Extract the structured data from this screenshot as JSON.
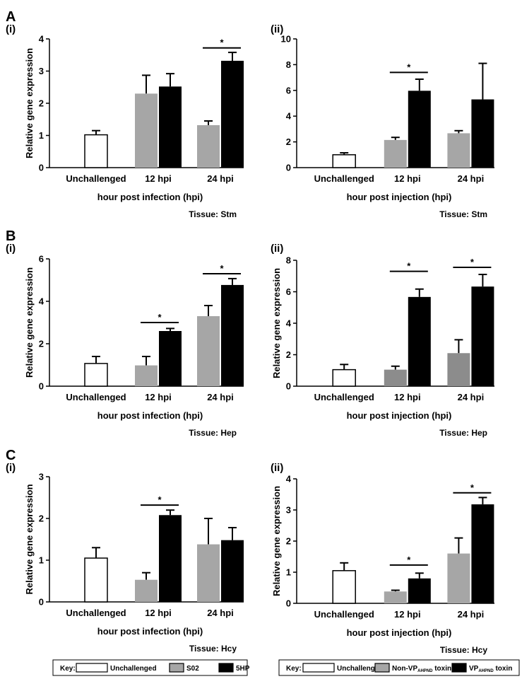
{
  "colors": {
    "white": "#ffffff",
    "gray": "#a6a6a6",
    "dark_gray": "#8c8c8c",
    "black": "#000000"
  },
  "keys": [
    {
      "label": "Key:",
      "items": [
        {
          "text": "Unchallenged",
          "color": "#ffffff"
        },
        {
          "text": "S02",
          "color": "#a6a6a6"
        },
        {
          "text": "5HP",
          "color": "#000000"
        }
      ]
    },
    {
      "label": "Key:",
      "items": [
        {
          "text": "Unchallenged",
          "color": "#ffffff"
        },
        {
          "text": "Non-VP",
          "sub": "AHPND",
          "suffix": " toxin",
          "color": "#a6a6a6"
        },
        {
          "text": "VP",
          "sub": "AHPND",
          "suffix": " toxin",
          "color": "#000000"
        }
      ]
    }
  ],
  "chart_data": [
    {
      "id": "A-i",
      "section_letter": "A",
      "panel_label": "(i)",
      "type": "bar",
      "ylabel": "Relative gene expression",
      "xlabel": "hour post infection (hpi)",
      "tissue": "Tissue: Stm",
      "ylim": [
        0,
        4
      ],
      "yticks": [
        0,
        1,
        2,
        3,
        4
      ],
      "categories": [
        "Unchallenged",
        "12 hpi",
        "24 hpi"
      ],
      "bars": [
        {
          "category": "Unchallenged",
          "value": 1.02,
          "error": 0.13,
          "color": "#ffffff"
        },
        {
          "category": "12 hpi",
          "value": 2.3,
          "error": 0.57,
          "color": "#a6a6a6"
        },
        {
          "category": "12 hpi",
          "value": 2.52,
          "error": 0.4,
          "color": "#000000"
        },
        {
          "category": "24 hpi",
          "value": 1.32,
          "error": 0.13,
          "color": "#a6a6a6"
        },
        {
          "category": "24 hpi",
          "value": 3.32,
          "error": 0.26,
          "color": "#000000"
        }
      ],
      "significance": [
        {
          "category": "24 hpi",
          "y": 3.72,
          "label": "*"
        }
      ]
    },
    {
      "id": "A-ii",
      "section_letter": "",
      "panel_label": "(ii)",
      "type": "bar",
      "ylabel": "",
      "xlabel": "hour post injection (hpi)",
      "tissue": "Tissue: Stm",
      "ylim": [
        0,
        10
      ],
      "yticks": [
        0,
        2,
        4,
        6,
        8,
        10
      ],
      "categories": [
        "Unchallenged",
        "12 hpi",
        "24 hpi"
      ],
      "bars": [
        {
          "category": "Unchallenged",
          "value": 1.0,
          "error": 0.15,
          "color": "#ffffff"
        },
        {
          "category": "12 hpi",
          "value": 2.15,
          "error": 0.2,
          "color": "#a6a6a6"
        },
        {
          "category": "12 hpi",
          "value": 5.97,
          "error": 0.9,
          "color": "#000000"
        },
        {
          "category": "24 hpi",
          "value": 2.67,
          "error": 0.2,
          "color": "#a6a6a6"
        },
        {
          "category": "24 hpi",
          "value": 5.3,
          "error": 2.8,
          "color": "#000000"
        }
      ],
      "significance": [
        {
          "category": "12 hpi",
          "y": 7.4,
          "label": "*"
        }
      ]
    },
    {
      "id": "B-i",
      "section_letter": "B",
      "panel_label": "(i)",
      "type": "bar",
      "ylabel": "Relative gene expression",
      "xlabel": "hour post infection (hpi)",
      "tissue": "Tissue: Hep",
      "ylim": [
        0,
        6
      ],
      "yticks": [
        0,
        2,
        4,
        6
      ],
      "categories": [
        "Unchallenged",
        "12 hpi",
        "24 hpi"
      ],
      "bars": [
        {
          "category": "Unchallenged",
          "value": 1.07,
          "error": 0.33,
          "color": "#ffffff"
        },
        {
          "category": "12 hpi",
          "value": 0.98,
          "error": 0.42,
          "color": "#a6a6a6"
        },
        {
          "category": "12 hpi",
          "value": 2.6,
          "error": 0.12,
          "color": "#000000"
        },
        {
          "category": "24 hpi",
          "value": 3.3,
          "error": 0.5,
          "color": "#a6a6a6"
        },
        {
          "category": "24 hpi",
          "value": 4.77,
          "error": 0.3,
          "color": "#000000"
        }
      ],
      "significance": [
        {
          "category": "12 hpi",
          "y": 3.0,
          "label": "*"
        },
        {
          "category": "24 hpi",
          "y": 5.3,
          "label": "*"
        }
      ]
    },
    {
      "id": "B-ii",
      "section_letter": "",
      "panel_label": "(ii)",
      "type": "bar",
      "ylabel": "Relative gene expression",
      "xlabel": "hour post injection (hpi)",
      "tissue": "Tissue: Hep",
      "ylim": [
        0,
        8
      ],
      "yticks": [
        0,
        2,
        4,
        6,
        8
      ],
      "categories": [
        "Unchallenged",
        "12 hpi",
        "24 hpi"
      ],
      "bars": [
        {
          "category": "Unchallenged",
          "value": 1.05,
          "error": 0.33,
          "color": "#ffffff"
        },
        {
          "category": "12 hpi",
          "value": 1.05,
          "error": 0.22,
          "color": "#8c8c8c"
        },
        {
          "category": "12 hpi",
          "value": 5.67,
          "error": 0.5,
          "color": "#000000"
        },
        {
          "category": "24 hpi",
          "value": 2.1,
          "error": 0.85,
          "color": "#8c8c8c"
        },
        {
          "category": "24 hpi",
          "value": 6.33,
          "error": 0.77,
          "color": "#000000"
        }
      ],
      "significance": [
        {
          "category": "12 hpi",
          "y": 7.3,
          "label": "*"
        },
        {
          "category": "24 hpi",
          "y": 7.55,
          "label": "*"
        }
      ]
    },
    {
      "id": "C-i",
      "section_letter": "C",
      "panel_label": "(i)",
      "type": "bar",
      "ylabel": "Relative gene expression",
      "xlabel": "hour post infection (hpi)",
      "tissue": "Tissue: Hcy",
      "ylim": [
        0,
        3
      ],
      "yticks": [
        0,
        1,
        2,
        3
      ],
      "categories": [
        "Unchallenged",
        "12 hpi",
        "24 hpi"
      ],
      "bars": [
        {
          "category": "Unchallenged",
          "value": 1.05,
          "error": 0.25,
          "color": "#ffffff"
        },
        {
          "category": "12 hpi",
          "value": 0.53,
          "error": 0.17,
          "color": "#a6a6a6"
        },
        {
          "category": "12 hpi",
          "value": 2.08,
          "error": 0.12,
          "color": "#000000"
        },
        {
          "category": "24 hpi",
          "value": 1.38,
          "error": 0.62,
          "color": "#a6a6a6"
        },
        {
          "category": "24 hpi",
          "value": 1.48,
          "error": 0.3,
          "color": "#000000"
        }
      ],
      "significance": [
        {
          "category": "12 hpi",
          "y": 2.32,
          "label": "*"
        }
      ]
    },
    {
      "id": "C-ii",
      "section_letter": "",
      "panel_label": "(ii)",
      "type": "bar",
      "ylabel": "Relative gene expression",
      "xlabel": "hour post injection (hpi)",
      "tissue": "Tissue: Hcy",
      "ylim": [
        0,
        4
      ],
      "yticks": [
        0,
        1,
        2,
        3,
        4
      ],
      "categories": [
        "Unchallenged",
        "12 hpi",
        "24 hpi"
      ],
      "bars": [
        {
          "category": "Unchallenged",
          "value": 1.05,
          "error": 0.25,
          "color": "#ffffff"
        },
        {
          "category": "12 hpi",
          "value": 0.38,
          "error": 0.04,
          "color": "#a6a6a6"
        },
        {
          "category": "12 hpi",
          "value": 0.8,
          "error": 0.17,
          "color": "#000000"
        },
        {
          "category": "24 hpi",
          "value": 1.6,
          "error": 0.5,
          "color": "#a6a6a6"
        },
        {
          "category": "24 hpi",
          "value": 3.18,
          "error": 0.22,
          "color": "#000000"
        }
      ],
      "significance": [
        {
          "category": "12 hpi",
          "y": 1.23,
          "label": "*"
        },
        {
          "category": "24 hpi",
          "y": 3.55,
          "label": "*"
        }
      ]
    }
  ]
}
